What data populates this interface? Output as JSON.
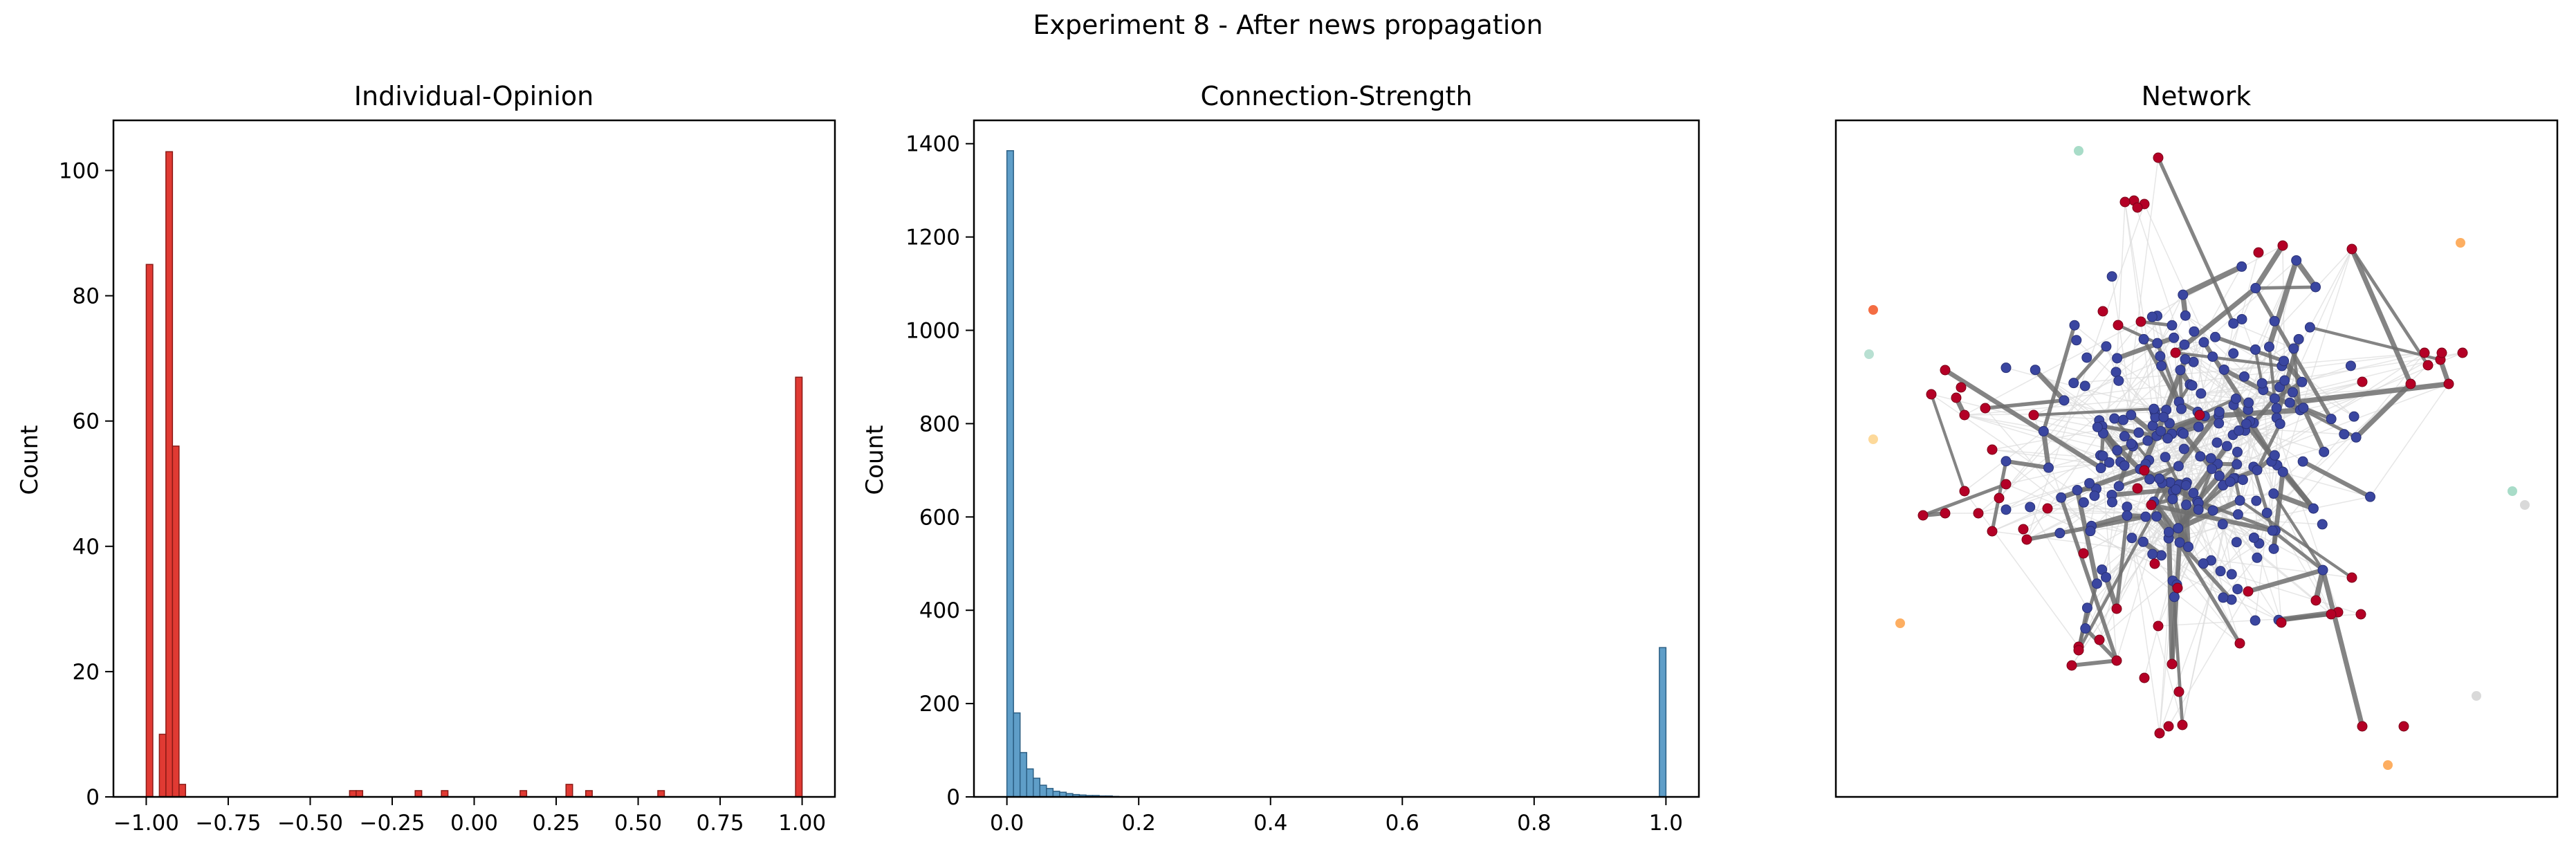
{
  "figure": {
    "suptitle": "Experiment 8 - After news propagation"
  },
  "chart_data": [
    {
      "type": "bar",
      "title": "Individual-Opinion",
      "xlabel": "",
      "ylabel": "Count",
      "xlim": [
        -1.1,
        1.1
      ],
      "ylim": [
        0,
        108
      ],
      "xticks": [
        -1.0,
        -0.75,
        -0.5,
        -0.25,
        0.0,
        0.25,
        0.5,
        0.75,
        1.0
      ],
      "xtick_labels": [
        "−1.00",
        "−0.75",
        "−0.50",
        "−0.25",
        "0.00",
        "0.25",
        "0.50",
        "0.75",
        "1.00"
      ],
      "yticks": [
        0,
        20,
        40,
        60,
        80,
        100
      ],
      "ytick_labels": [
        "0",
        "20",
        "40",
        "60",
        "80",
        "100"
      ],
      "bin_width": 0.02,
      "bin_starts": [
        -1.0,
        -0.96,
        -0.94,
        -0.92,
        -0.9,
        -0.38,
        -0.36,
        -0.18,
        -0.1,
        0.14,
        0.28,
        0.34,
        0.56,
        0.98
      ],
      "values": [
        85,
        10,
        103,
        56,
        2,
        1,
        1,
        1,
        1,
        1,
        2,
        1,
        1,
        67
      ],
      "color": "#e03a33",
      "edge_color": "#8b1a16",
      "grid": false
    },
    {
      "type": "bar",
      "title": "Connection-Strength",
      "xlabel": "",
      "ylabel": "Count",
      "xlim": [
        -0.05,
        1.05
      ],
      "ylim": [
        0,
        1450
      ],
      "xticks": [
        0.0,
        0.2,
        0.4,
        0.6,
        0.8,
        1.0
      ],
      "xtick_labels": [
        "0.0",
        "0.2",
        "0.4",
        "0.6",
        "0.8",
        "1.0"
      ],
      "yticks": [
        0,
        200,
        400,
        600,
        800,
        1000,
        1200,
        1400
      ],
      "ytick_labels": [
        "0",
        "200",
        "400",
        "600",
        "800",
        "1000",
        "1200",
        "1400"
      ],
      "bin_width": 0.01,
      "bin_starts": [
        0.0,
        0.01,
        0.02,
        0.03,
        0.04,
        0.05,
        0.06,
        0.07,
        0.08,
        0.09,
        0.1,
        0.11,
        0.12,
        0.13,
        0.14,
        0.15,
        0.16,
        0.99
      ],
      "values": [
        1385,
        180,
        95,
        60,
        40,
        25,
        18,
        12,
        10,
        7,
        5,
        4,
        3,
        3,
        2,
        2,
        1,
        320
      ],
      "color": "#5f9ec8",
      "edge_color": "#2c5f84",
      "grid": false
    },
    {
      "type": "network",
      "title": "Network",
      "node_colors": {
        "main": "#3a46a0",
        "opposed": "#b40026",
        "isolated": [
          "#a8dcc8",
          "#f46d43",
          "#fdd99a",
          "#fdae61",
          "#b8e0d2",
          "#d9d9d9"
        ]
      },
      "edge_color": "#6f6f6f",
      "faint_edge_color": "#dcdcdc"
    }
  ]
}
